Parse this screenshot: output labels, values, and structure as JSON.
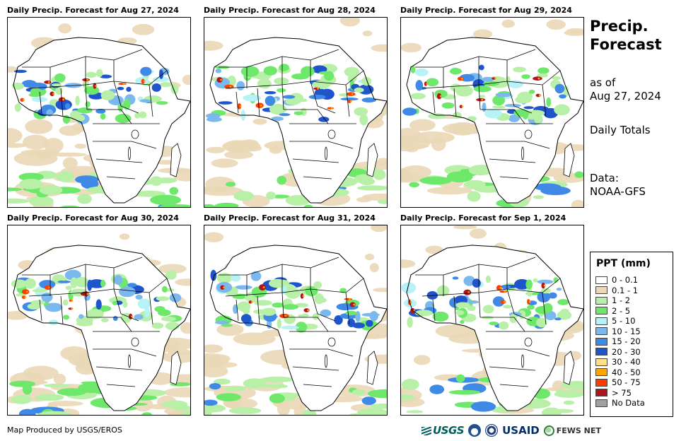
{
  "panels": [
    {
      "title": "Daily Precip. Forecast for Aug 27, 2024"
    },
    {
      "title": "Daily Precip. Forecast for Aug 28, 2024"
    },
    {
      "title": "Daily Precip. Forecast for Aug 29, 2024"
    },
    {
      "title": "Daily Precip. Forecast for Aug 30, 2024"
    },
    {
      "title": "Daily Precip. Forecast for Aug 31, 2024"
    },
    {
      "title": "Daily Precip. Forecast for Sep 1, 2024"
    }
  ],
  "sidebar": {
    "title": "Precip. Forecast",
    "as_of_label": "as of",
    "as_of_date": "Aug 27, 2024",
    "totals": "Daily Totals",
    "data_label": "Data:",
    "data_source": "NOAA-GFS"
  },
  "legend": {
    "title": "PPT (mm)",
    "items": [
      {
        "label": "0 - 0.1",
        "color": "#ffffff"
      },
      {
        "label": "0.1 - 1",
        "color": "#ead8b6"
      },
      {
        "label": "1 - 2",
        "color": "#b8f0a8"
      },
      {
        "label": "2 - 5",
        "color": "#6ee86a"
      },
      {
        "label": "5 - 10",
        "color": "#b6f2f6"
      },
      {
        "label": "10 - 15",
        "color": "#7ab8ee"
      },
      {
        "label": "15 - 20",
        "color": "#3f8ae6"
      },
      {
        "label": "20 - 30",
        "color": "#1f55cc"
      },
      {
        "label": "30 - 40",
        "color": "#ffe089"
      },
      {
        "label": "40 - 50",
        "color": "#ffa500"
      },
      {
        "label": "50 - 75",
        "color": "#ff3c00"
      },
      {
        "label": "> 75",
        "color": "#b0141e"
      },
      {
        "label": "No Data",
        "color": "#a0a0a0"
      }
    ]
  },
  "footer": {
    "producer": "Map Produced by USGS/EROS",
    "logos": {
      "usgs": "USGS",
      "usaid": "USAID",
      "fews": "FEWS NET"
    }
  }
}
